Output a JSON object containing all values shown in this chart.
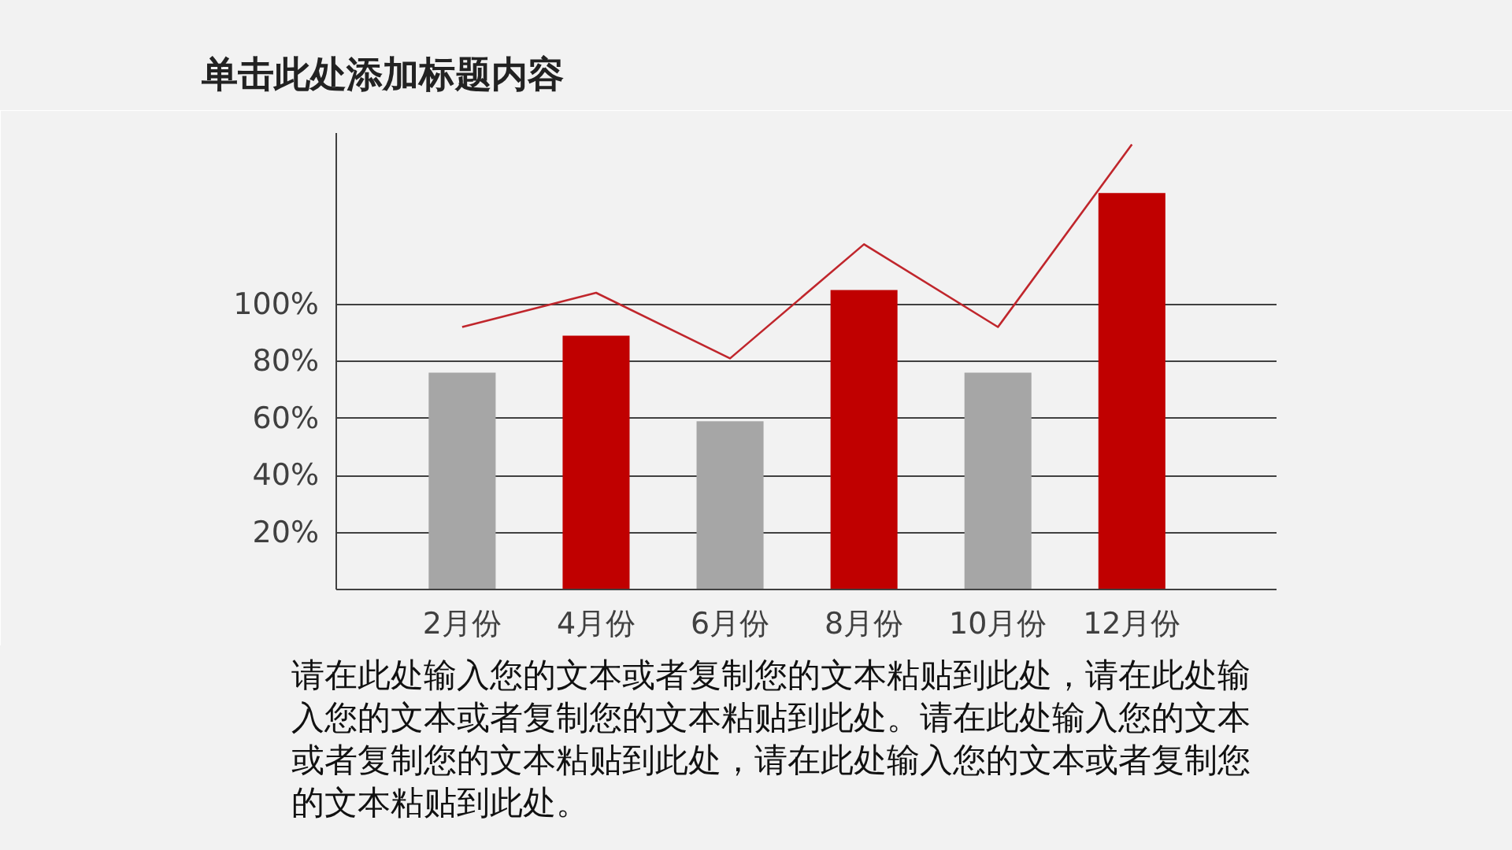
{
  "chart_data": {
    "type": "bar",
    "title": "单击此处添加标题内容",
    "categories": [
      "2月份",
      "4月份",
      "6月份",
      "8月份",
      "10月份",
      "12月份"
    ],
    "series": [
      {
        "colors": [
          "#a6a6a6",
          "#c00000",
          "#a6a6a6",
          "#c00000",
          "#a6a6a6",
          "#c00000"
        ],
        "values": [
          76,
          89,
          59,
          105,
          76,
          139
        ]
      },
      {
        "type": "line",
        "color": "#c0262c",
        "values": [
          92,
          104,
          81,
          121,
          92,
          156
        ]
      }
    ],
    "ylim": [
      0,
      160
    ],
    "yticks": [
      {
        "value": 20,
        "label": "20%"
      },
      {
        "value": 40,
        "label": "40%"
      },
      {
        "value": 60,
        "label": "60%"
      },
      {
        "value": 80,
        "label": "80%"
      },
      {
        "value": 100,
        "label": "100%"
      }
    ],
    "grid": "y",
    "annotations": [
      "请在此处输入您的文本或者复制您的文本粘贴到此处，请在此处输入您的文本或者复制您的文本粘贴到此处。请在此处输入您的文本或者复制您的文本粘贴到此处，请在此处输入您的文本或者复制您的文本粘贴到此处。"
    ]
  }
}
